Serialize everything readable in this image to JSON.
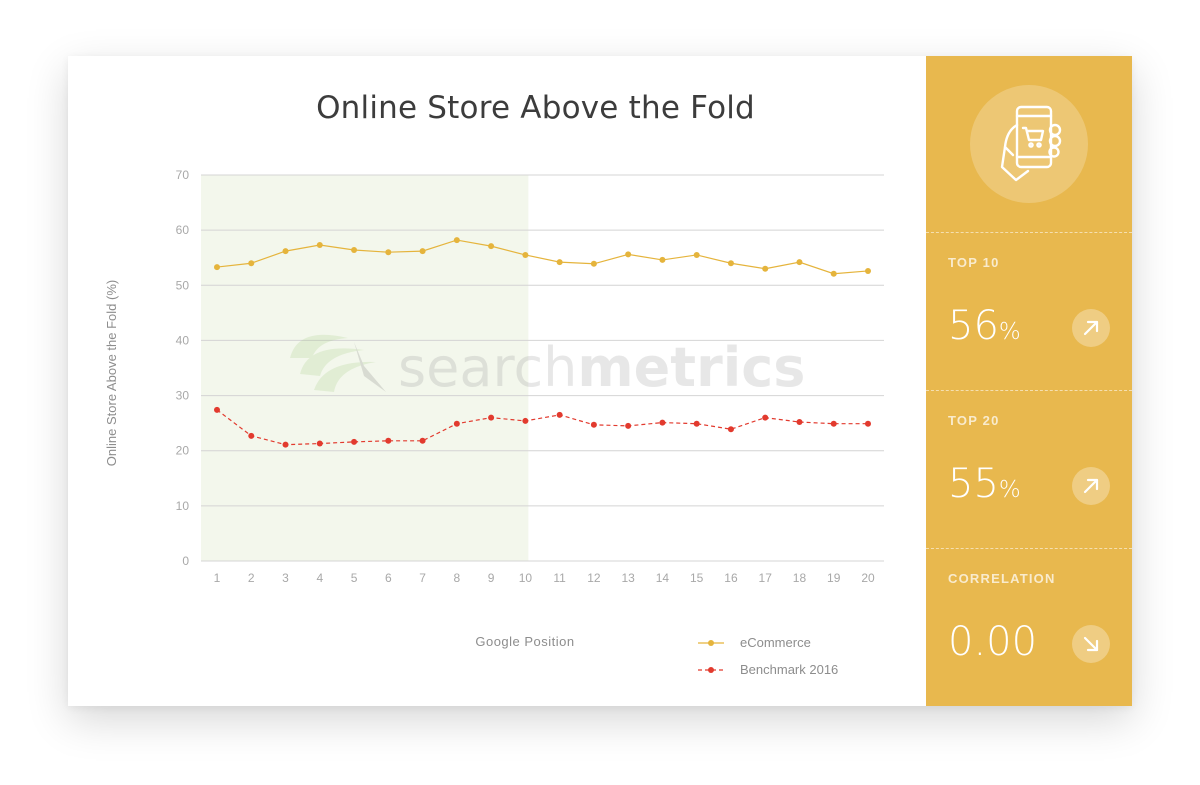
{
  "chart_title": "Online Store Above the Fold",
  "watermark": {
    "text_light": "search",
    "text_bold": "metrics"
  },
  "chart_data": {
    "type": "line",
    "title": "Online Store Above the Fold",
    "xlabel": "Google Position",
    "ylabel": "Online Store Above the Fold (%)",
    "x": [
      1,
      2,
      3,
      4,
      5,
      6,
      7,
      8,
      9,
      10,
      11,
      12,
      13,
      14,
      15,
      16,
      17,
      18,
      19,
      20
    ],
    "ylim": [
      0,
      70
    ],
    "yticks": [
      0,
      10,
      20,
      30,
      40,
      50,
      60,
      70
    ],
    "highlight_range": [
      1,
      10
    ],
    "grid": true,
    "legend_position": "bottom-right",
    "series": [
      {
        "name": "eCommerce",
        "color": "#e5b43c",
        "dashed": false,
        "values": [
          53.3,
          54.0,
          56.2,
          57.3,
          56.4,
          56.0,
          56.2,
          58.2,
          57.1,
          55.5,
          54.2,
          53.9,
          55.6,
          54.6,
          55.5,
          54.0,
          53.0,
          54.2,
          52.1,
          52.6
        ]
      },
      {
        "name": "Benchmark 2016",
        "color": "#e23a2e",
        "dashed": true,
        "values": [
          27.4,
          22.7,
          21.1,
          21.3,
          21.6,
          21.8,
          21.8,
          24.9,
          26.0,
          25.4,
          26.5,
          24.7,
          24.5,
          25.1,
          24.9,
          23.9,
          26.0,
          25.2,
          24.9,
          24.9
        ]
      }
    ]
  },
  "side_panel": {
    "icon": "mobile-shopping-cart-icon",
    "background_color": "#e8b84e",
    "stats": [
      {
        "label": "TOP 10",
        "value": "56",
        "unit": "%",
        "trend": "up"
      },
      {
        "label": "TOP 20",
        "value": "55",
        "unit": "%",
        "trend": "up"
      },
      {
        "label": "CORRELATION",
        "value": "0.00",
        "unit": "",
        "trend": "down"
      }
    ]
  }
}
